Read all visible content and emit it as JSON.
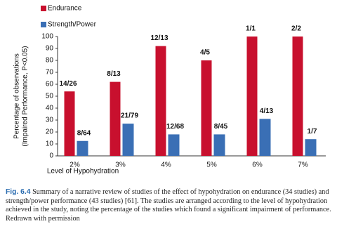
{
  "chart_data": {
    "type": "bar",
    "categories": [
      "2%",
      "3%",
      "4%",
      "5%",
      "6%",
      "7%"
    ],
    "series": [
      {
        "name": "Endurance",
        "color": "#c8102e",
        "values": [
          54,
          62,
          92,
          80,
          100,
          100
        ],
        "value_labels": [
          "14/26",
          "8/13",
          "12/13",
          "4/5",
          "1/1",
          "2/2"
        ]
      },
      {
        "name": "Strength/Power",
        "color": "#3a6fb5",
        "values": [
          12.5,
          27,
          18,
          18,
          31,
          14
        ],
        "value_labels": [
          "8/64",
          "21/79",
          "12/68",
          "8/45",
          "4/13",
          "1/7"
        ]
      }
    ],
    "ylim": [
      0,
      100
    ],
    "yticks": [
      0,
      10,
      20,
      30,
      40,
      50,
      60,
      70,
      80,
      90,
      100
    ],
    "x_label": "Level of Hypohydration",
    "y_label": [
      "Percentage of observations",
      "(Impaired Performance, P<0.05)"
    ],
    "caption": {
      "label": "Fig. 6.4",
      "text": "Summary of a narrative review of studies of the effect of hypohydration on endurance (34 studies) and strength/power performance (43 studies) [61]. The studies are arranged according to the level of hypohydration achieved in the study, noting the percentage of the studies which found a significant impairment of performance. Redrawn with permission"
    }
  }
}
